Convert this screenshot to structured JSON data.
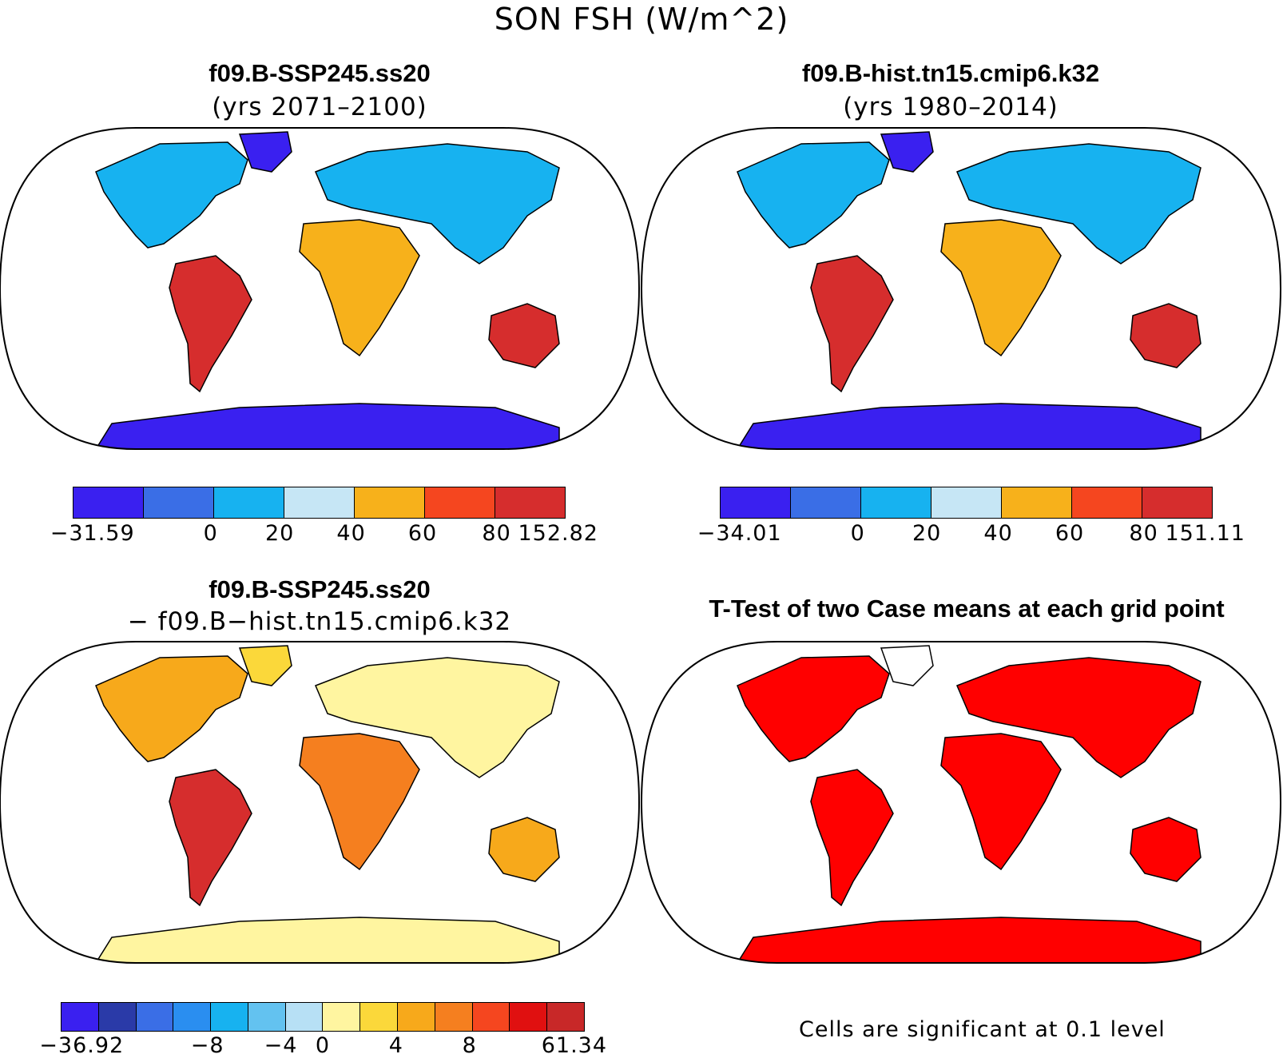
{
  "title": "SON FSH (W/m^2)",
  "panels": {
    "p1": {
      "title": "f09.B-SSP245.ss20",
      "subtitle": "(yrs 2071–2100)",
      "colorbar": {
        "colors": [
          "#3a20f0",
          "#3a6ee6",
          "#17b2f0",
          "#c6e6f5",
          "#f7b11b",
          "#f5461f",
          "#d62d2d"
        ],
        "ticks": [
          "−31.59",
          "0",
          "20",
          "40",
          "60",
          "80",
          "152.82"
        ]
      }
    },
    "p2": {
      "title": "f09.B-hist.tn15.cmip6.k32",
      "subtitle": "(yrs 1980–2014)",
      "colorbar": {
        "colors": [
          "#3a20f0",
          "#3a6ee6",
          "#17b2f0",
          "#c6e6f5",
          "#f7b11b",
          "#f5461f",
          "#d62d2d"
        ],
        "ticks": [
          "−34.01",
          "0",
          "20",
          "40",
          "60",
          "80",
          "151.11"
        ]
      }
    },
    "p3": {
      "title": "f09.B-SSP245.ss20",
      "subtitle": "− f09.B−hist.tn15.cmip6.k32",
      "colorbar": {
        "colors": [
          "#3a20f0",
          "#2a3aa8",
          "#3a6ee6",
          "#2a8ef0",
          "#17b2f0",
          "#63c2f0",
          "#b7e0f5",
          "#fff5a0",
          "#fbd83a",
          "#f7a91b",
          "#f57f1f",
          "#f5461f",
          "#e01010",
          "#c82828"
        ],
        "ticks": [
          "−36.92",
          "−8",
          "−4",
          "0",
          "4",
          "8",
          "61.34"
        ]
      }
    },
    "p4": {
      "title": "T-Test of two Case means at each grid point",
      "note": "Cells are significant at 0.1 level",
      "color": "#ff0000"
    }
  }
}
